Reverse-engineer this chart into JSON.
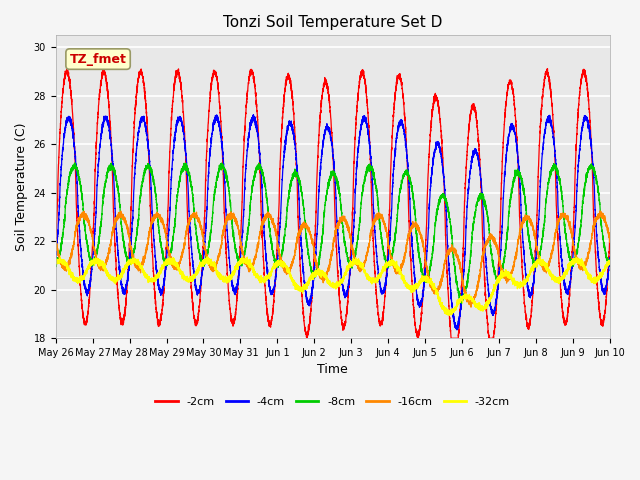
{
  "title": "Tonzi Soil Temperature Set D",
  "xlabel": "Time",
  "ylabel": "Soil Temperature (C)",
  "ylim": [
    18,
    30.5
  ],
  "series_labels": [
    "-2cm",
    "-4cm",
    "-8cm",
    "-16cm",
    "-32cm"
  ],
  "series_colors": [
    "#ff0000",
    "#0000ff",
    "#00cc00",
    "#ff8800",
    "#ffff00"
  ],
  "x_tick_labels": [
    "May 26",
    "May 27",
    "May 28",
    "May 29",
    "May 30",
    "May 31",
    "Jun 1",
    "Jun 2",
    "Jun 3",
    "Jun 4",
    "Jun 5",
    "Jun 6",
    "Jun 7",
    "Jun 8",
    "Jun 9",
    "Jun 10"
  ],
  "annotation_text": "TZ_fmet",
  "annotation_color": "#cc0000",
  "annotation_bg": "#ffffcc",
  "plot_bg_color": "#e8e8e8",
  "fig_bg_color": "#f5f5f5",
  "title_fontsize": 11,
  "axis_label_fontsize": 9,
  "tick_fontsize": 7,
  "legend_fontsize": 8,
  "grid_color": "#ffffff",
  "n_points": 7200,
  "depth_2cm": {
    "mean": 23.8,
    "amp": 5.2,
    "phase": 0.05
  },
  "depth_4cm": {
    "mean": 23.5,
    "amp": 3.6,
    "phase": 0.1
  },
  "depth_8cm": {
    "mean": 23.1,
    "amp": 2.0,
    "phase": 0.25
  },
  "depth_16cm": {
    "mean": 22.0,
    "amp": 1.1,
    "phase": 0.5
  },
  "depth_32cm": {
    "mean": 20.8,
    "amp": 0.4,
    "phase": 0.85
  }
}
